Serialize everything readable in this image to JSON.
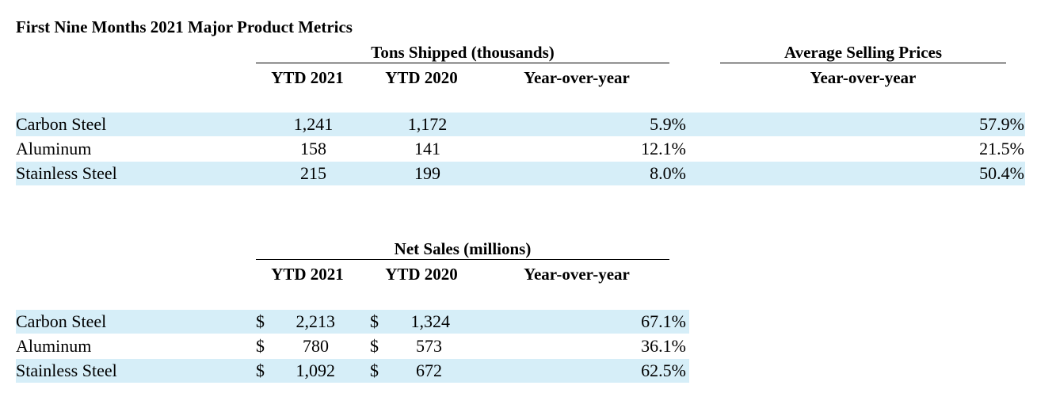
{
  "title": "First Nine Months 2021 Major Product Metrics",
  "colors": {
    "band": "#d6eef8"
  },
  "tons": {
    "heading": "Tons Shipped (thousands)",
    "col_2021": "YTD 2021",
    "col_2020": "YTD 2020",
    "col_yoy": "Year-over-year",
    "rows": [
      {
        "label": "Carbon Steel",
        "v2021": "1,241",
        "v2020": "1,172",
        "yoy": "5.9%"
      },
      {
        "label": "Aluminum",
        "v2021": "158",
        "v2020": "141",
        "yoy": "12.1%"
      },
      {
        "label": "Stainless Steel",
        "v2021": "215",
        "v2020": "199",
        "yoy": "8.0%"
      }
    ]
  },
  "asp": {
    "heading": "Average Selling Prices",
    "col_yoy": "Year-over-year",
    "values": [
      "57.9%",
      "21.5%",
      "50.4%"
    ]
  },
  "net_sales": {
    "heading": "Net Sales (millions)",
    "col_2021": "YTD 2021",
    "col_2020": "YTD 2020",
    "col_yoy": "Year-over-year",
    "currency": "$",
    "rows": [
      {
        "label": "Carbon Steel",
        "v2021": "2,213",
        "v2020": "1,324",
        "yoy": "67.1%"
      },
      {
        "label": "Aluminum",
        "v2021": "780",
        "v2020": "573",
        "yoy": "36.1%"
      },
      {
        "label": "Stainless Steel",
        "v2021": "1,092",
        "v2020": "672",
        "yoy": "62.5%"
      }
    ]
  }
}
